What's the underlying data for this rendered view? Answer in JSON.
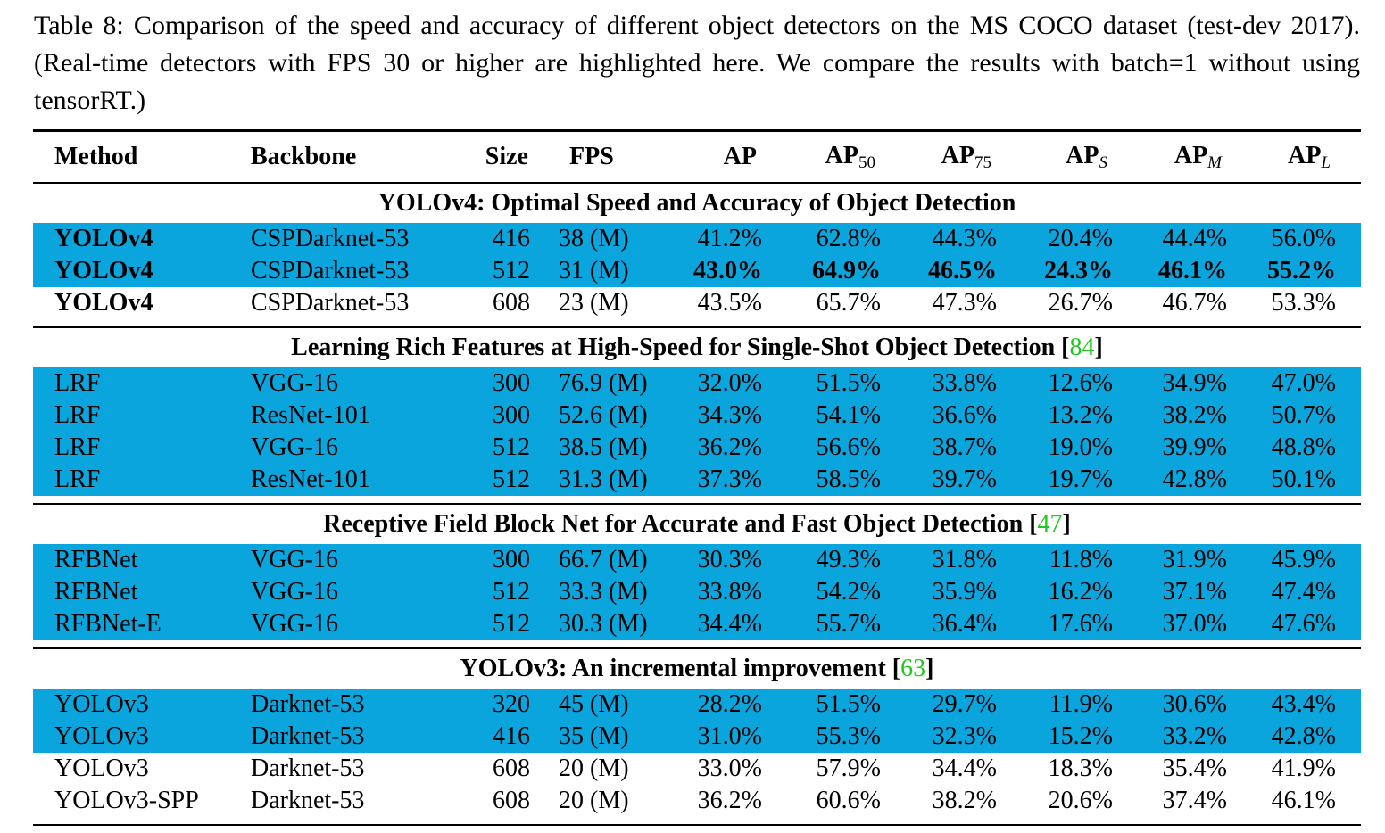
{
  "caption": "Table 8: Comparison of the speed and accuracy of different object detectors on the MS COCO dataset (test-dev 2017). (Real-time detectors with FPS 30 or higher are highlighted here. We compare the results with batch=1 without using tensorRT.)",
  "colors": {
    "highlight": "#0aa5dd",
    "citation": "#1ec81e"
  },
  "header": {
    "method": "Method",
    "backbone": "Backbone",
    "size": "Size",
    "fps": "FPS",
    "ap": "AP",
    "ap50": "AP",
    "ap50_sub": "50",
    "ap75": "AP",
    "ap75_sub": "75",
    "aps": "AP",
    "aps_sub": "S",
    "apm": "AP",
    "apm_sub": "M",
    "apl": "AP",
    "apl_sub": "L"
  },
  "sections": [
    {
      "title": "YOLOv4: Optimal Speed and Accuracy of Object Detection",
      "ref": "",
      "rows": [
        {
          "method": "YOLOv4",
          "backbone": "CSPDarknet-53",
          "size": "416",
          "fps": "38 (M)",
          "ap": "41.2%",
          "ap50": "62.8%",
          "ap75": "44.3%",
          "aps": "20.4%",
          "apm": "44.4%",
          "apl": "56.0%",
          "highlight": true,
          "method_bold": true,
          "values_bold": false
        },
        {
          "method": "YOLOv4",
          "backbone": "CSPDarknet-53",
          "size": "512",
          "fps": "31 (M)",
          "ap": "43.0%",
          "ap50": "64.9%",
          "ap75": "46.5%",
          "aps": "24.3%",
          "apm": "46.1%",
          "apl": "55.2%",
          "highlight": true,
          "method_bold": true,
          "values_bold": true
        },
        {
          "method": "YOLOv4",
          "backbone": "CSPDarknet-53",
          "size": "608",
          "fps": "23 (M)",
          "ap": "43.5%",
          "ap50": "65.7%",
          "ap75": "47.3%",
          "aps": "26.7%",
          "apm": "46.7%",
          "apl": "53.3%",
          "highlight": false,
          "method_bold": true,
          "values_bold": false
        }
      ]
    },
    {
      "title": "Learning Rich Features at High-Speed for Single-Shot Object Detection",
      "ref": "84",
      "rows": [
        {
          "method": "LRF",
          "backbone": "VGG-16",
          "size": "300",
          "fps": "76.9 (M)",
          "ap": "32.0%",
          "ap50": "51.5%",
          "ap75": "33.8%",
          "aps": "12.6%",
          "apm": "34.9%",
          "apl": "47.0%",
          "highlight": true
        },
        {
          "method": "LRF",
          "backbone": "ResNet-101",
          "size": "300",
          "fps": "52.6 (M)",
          "ap": "34.3%",
          "ap50": "54.1%",
          "ap75": "36.6%",
          "aps": "13.2%",
          "apm": "38.2%",
          "apl": "50.7%",
          "highlight": true
        },
        {
          "method": "LRF",
          "backbone": "VGG-16",
          "size": "512",
          "fps": "38.5 (M)",
          "ap": "36.2%",
          "ap50": "56.6%",
          "ap75": "38.7%",
          "aps": "19.0%",
          "apm": "39.9%",
          "apl": "48.8%",
          "highlight": true
        },
        {
          "method": "LRF",
          "backbone": "ResNet-101",
          "size": "512",
          "fps": "31.3 (M)",
          "ap": "37.3%",
          "ap50": "58.5%",
          "ap75": "39.7%",
          "aps": "19.7%",
          "apm": "42.8%",
          "apl": "50.1%",
          "highlight": true
        }
      ]
    },
    {
      "title": "Receptive Field Block Net for Accurate and Fast Object Detection",
      "ref": "47",
      "rows": [
        {
          "method": "RFBNet",
          "backbone": "VGG-16",
          "size": "300",
          "fps": "66.7 (M)",
          "ap": "30.3%",
          "ap50": "49.3%",
          "ap75": "31.8%",
          "aps": "11.8%",
          "apm": "31.9%",
          "apl": "45.9%",
          "highlight": true
        },
        {
          "method": "RFBNet",
          "backbone": "VGG-16",
          "size": "512",
          "fps": "33.3 (M)",
          "ap": "33.8%",
          "ap50": "54.2%",
          "ap75": "35.9%",
          "aps": "16.2%",
          "apm": "37.1%",
          "apl": "47.4%",
          "highlight": true
        },
        {
          "method": "RFBNet-E",
          "backbone": "VGG-16",
          "size": "512",
          "fps": "30.3 (M)",
          "ap": "34.4%",
          "ap50": "55.7%",
          "ap75": "36.4%",
          "aps": "17.6%",
          "apm": "37.0%",
          "apl": "47.6%",
          "highlight": true
        }
      ]
    },
    {
      "title": "YOLOv3: An incremental improvement",
      "ref": "63",
      "rows": [
        {
          "method": "YOLOv3",
          "backbone": "Darknet-53",
          "size": "320",
          "fps": "45 (M)",
          "ap": "28.2%",
          "ap50": "51.5%",
          "ap75": "29.7%",
          "aps": "11.9%",
          "apm": "30.6%",
          "apl": "43.4%",
          "highlight": true
        },
        {
          "method": "YOLOv3",
          "backbone": "Darknet-53",
          "size": "416",
          "fps": "35 (M)",
          "ap": "31.0%",
          "ap50": "55.3%",
          "ap75": "32.3%",
          "aps": "15.2%",
          "apm": "33.2%",
          "apl": "42.8%",
          "highlight": true
        },
        {
          "method": "YOLOv3",
          "backbone": "Darknet-53",
          "size": "608",
          "fps": "20 (M)",
          "ap": "33.0%",
          "ap50": "57.9%",
          "ap75": "34.4%",
          "aps": "18.3%",
          "apm": "35.4%",
          "apl": "41.9%",
          "highlight": false
        },
        {
          "method": "YOLOv3-SPP",
          "backbone": "Darknet-53",
          "size": "608",
          "fps": "20 (M)",
          "ap": "36.2%",
          "ap50": "60.6%",
          "ap75": "38.2%",
          "aps": "20.6%",
          "apm": "37.4%",
          "apl": "46.1%",
          "highlight": false
        }
      ]
    }
  ]
}
